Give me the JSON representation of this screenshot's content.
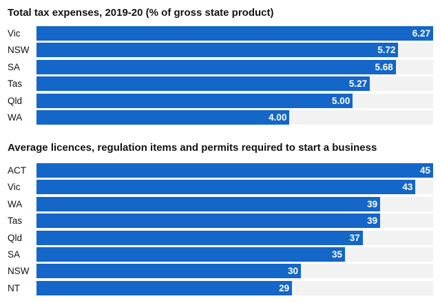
{
  "colors": {
    "bar": "#1466c8",
    "track": "#f2f2f2",
    "label_on_bar": "#ffffff"
  },
  "chart_data": [
    {
      "type": "bar",
      "orientation": "horizontal",
      "title": "Total tax expenses, 2019-20 (% of gross state product)",
      "categories": [
        "Vic",
        "NSW",
        "SA",
        "Tas",
        "Qld",
        "WA"
      ],
      "values": [
        6.27,
        5.72,
        5.68,
        5.27,
        5.0,
        4.0
      ],
      "value_labels": [
        "6.27",
        "5.72",
        "5.68",
        "5.27",
        "5.00",
        "4.00"
      ],
      "xlim": [
        0,
        6.27
      ],
      "grid": false,
      "legend": "none"
    },
    {
      "type": "bar",
      "orientation": "horizontal",
      "title": "Average licences, regulation items and permits required to start a business",
      "categories": [
        "ACT",
        "Vic",
        "WA",
        "Tas",
        "Qld",
        "SA",
        "NSW",
        "NT"
      ],
      "values": [
        45,
        43,
        39,
        39,
        37,
        35,
        30,
        29
      ],
      "value_labels": [
        "45",
        "43",
        "39",
        "39",
        "37",
        "35",
        "30",
        "29"
      ],
      "xlim": [
        0,
        45
      ],
      "grid": false,
      "legend": "none"
    }
  ]
}
